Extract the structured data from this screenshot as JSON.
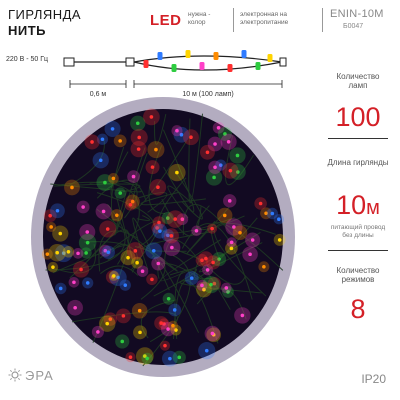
{
  "header": {
    "title_line1": "ГИРЛЯНДА",
    "title_line2": "НИТЬ",
    "led": "LED",
    "led_sub": "нужна - колор",
    "note": "электронная на электропитание",
    "model": "ENIN-10M",
    "article": "Б0047"
  },
  "diagram": {
    "voltage": "220 В - 50 Гц",
    "lead_length": "0,6 м",
    "string_length": "10 м (100 ламп)"
  },
  "specs": [
    {
      "label": "Количество ламп",
      "value": "100"
    },
    {
      "label": "Длина гирлянды",
      "value": "10",
      "unit": "м",
      "note": "питающий провод без длины"
    },
    {
      "label": "Количество режимов",
      "value": "8"
    }
  ],
  "ip_rating": "IP20",
  "logo_text": "ЭРА",
  "colors": {
    "accent": "#d42027",
    "bulbs": [
      "#ff3030",
      "#2f7bff",
      "#2ecc40",
      "#ffd400",
      "#ff40c8",
      "#ff8c00"
    ]
  }
}
